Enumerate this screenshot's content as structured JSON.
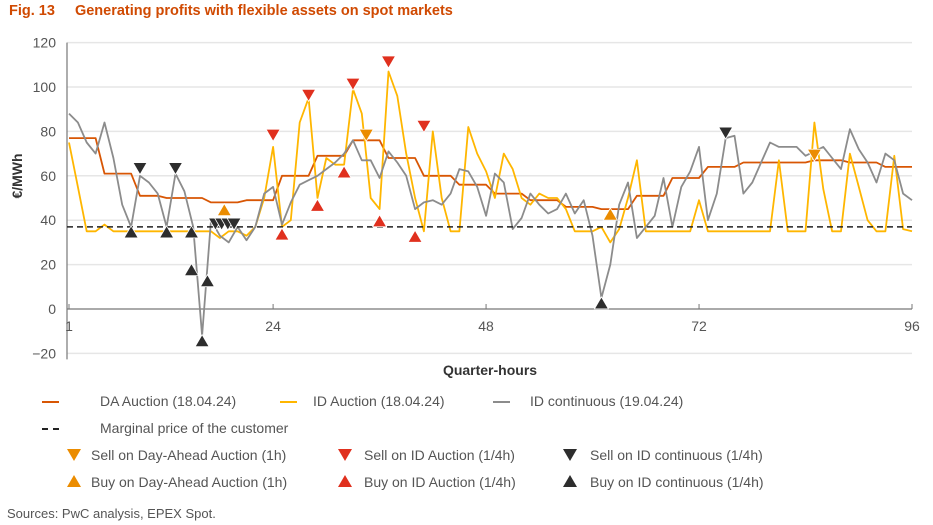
{
  "figure": {
    "number": "Fig. 13",
    "title": "Generating profits with flexible assets on spot markets"
  },
  "sources": "Sources: PwC analysis, EPEX Spot.",
  "chart_data": {
    "type": "line",
    "xlabel": "Quarter-hours",
    "ylabel": "€/MWh",
    "xlim": [
      1,
      96
    ],
    "ylim": [
      -20,
      120
    ],
    "xticks": [
      1,
      24,
      48,
      72,
      96
    ],
    "yticks": [
      -20,
      0,
      20,
      40,
      60,
      80,
      100,
      120
    ],
    "ytick_labels": [
      "−20",
      "0",
      "20",
      "40",
      "60",
      "80",
      "100",
      "120"
    ],
    "grid": "horizontal",
    "legend_placement": "bottom",
    "series": [
      {
        "name": "DA Auction (18.04.24)",
        "color": "#d85604",
        "values": [
          77,
          77,
          77,
          77,
          61,
          61,
          61,
          61,
          51,
          51,
          51,
          50,
          50,
          50,
          50,
          50,
          48,
          48,
          48,
          48,
          49,
          49,
          49,
          49,
          60,
          60,
          60,
          60,
          69,
          69,
          69,
          69,
          76,
          76,
          76,
          76,
          68,
          68,
          68,
          68,
          60,
          60,
          60,
          60,
          56,
          56,
          56,
          56,
          52,
          52,
          52,
          52,
          49,
          49,
          49,
          49,
          46,
          46,
          46,
          46,
          45,
          45,
          45,
          45,
          51,
          51,
          51,
          51,
          59,
          59,
          59,
          59,
          64,
          64,
          64,
          64,
          66,
          66,
          66,
          66,
          66,
          66,
          66,
          66,
          67,
          67,
          67,
          67,
          66,
          66,
          66,
          66,
          64,
          64,
          64,
          64
        ]
      },
      {
        "name": "ID Auction (18.04.24)",
        "color": "#ffb600",
        "values": [
          75,
          55,
          35,
          35,
          38,
          35,
          35,
          35,
          35,
          35,
          35,
          35,
          35,
          35,
          35,
          35,
          35,
          32,
          35,
          35,
          33,
          37,
          50,
          73,
          37,
          40,
          84,
          95,
          50,
          68,
          65,
          65,
          99,
          88,
          50,
          45,
          107,
          96,
          70,
          50,
          35,
          80,
          50,
          35,
          35,
          82,
          70,
          62,
          50,
          70,
          63,
          50,
          47,
          52,
          50,
          50,
          45,
          35,
          35,
          35,
          37,
          30,
          36,
          50,
          67,
          35,
          35,
          35,
          35,
          35,
          35,
          49,
          35,
          35,
          35,
          35,
          35,
          35,
          35,
          35,
          67,
          35,
          35,
          35,
          84,
          54,
          35,
          35,
          70,
          55,
          40,
          35,
          35,
          69,
          36,
          35
        ]
      },
      {
        "name": "ID continuous (19.04.24)",
        "color": "#8c8c8c",
        "values": [
          88,
          84,
          75,
          70,
          84,
          68,
          47,
          37,
          60,
          57,
          52,
          37,
          61,
          53,
          37,
          -12,
          40,
          33,
          30,
          37,
          31,
          37,
          52,
          55,
          38,
          48,
          56,
          58,
          60,
          63,
          66,
          70,
          76,
          67,
          67,
          59,
          71,
          66,
          60,
          45,
          48,
          49,
          47,
          52,
          63,
          62,
          55,
          42,
          61,
          57,
          36,
          41,
          52,
          47,
          43,
          45,
          52,
          43,
          49,
          33,
          5,
          20,
          47,
          57,
          32,
          37,
          42,
          59,
          37,
          55,
          62,
          73,
          40,
          52,
          77,
          78,
          52,
          57,
          66,
          75,
          73,
          73,
          73,
          69,
          71,
          73,
          68,
          63,
          81,
          72,
          66,
          57,
          70,
          67,
          52,
          49
        ]
      },
      {
        "name": "Marginal price of the customer",
        "color": "#222222",
        "style": "dashed",
        "values": [
          37
        ]
      }
    ],
    "markers": [
      {
        "name": "Sell on Day-Ahead Auction (1h)",
        "shape": "triangle-down",
        "color": "#eb8c00",
        "points": [
          [
            34.5,
            76
          ],
          [
            85,
            67
          ]
        ]
      },
      {
        "name": "Buy on Day-Ahead Auction (1h)",
        "shape": "triangle-up",
        "color": "#eb8c00",
        "points": [
          [
            18.5,
            47
          ],
          [
            62,
            45
          ]
        ]
      },
      {
        "name": "Sell on ID Auction (1/4h)",
        "shape": "triangle-down",
        "color": "#e0301e",
        "points": [
          [
            24,
            76
          ],
          [
            28,
            94
          ],
          [
            33,
            99
          ],
          [
            37,
            109
          ],
          [
            41,
            80
          ]
        ]
      },
      {
        "name": "Buy on ID Auction (1/4h)",
        "shape": "triangle-up",
        "color": "#e0301e",
        "points": [
          [
            25,
            36
          ],
          [
            29,
            49
          ],
          [
            32,
            64
          ],
          [
            36,
            42
          ],
          [
            40,
            35
          ]
        ]
      },
      {
        "name": "Sell on ID continuous (1/4h)",
        "shape": "triangle-down",
        "color": "#2d2d2d",
        "points": [
          [
            9,
            61
          ],
          [
            13,
            61
          ],
          [
            17.5,
            36
          ],
          [
            18.2,
            36
          ],
          [
            18.9,
            36
          ],
          [
            19.6,
            36
          ],
          [
            75,
            77
          ]
        ]
      },
      {
        "name": "Buy on ID continuous (1/4h)",
        "shape": "triangle-up",
        "color": "#2d2d2d",
        "points": [
          [
            8,
            37
          ],
          [
            12,
            37
          ],
          [
            14.8,
            37
          ],
          [
            14.8,
            20
          ],
          [
            16,
            -12
          ],
          [
            16.6,
            15
          ],
          [
            61,
            5
          ]
        ]
      }
    ]
  }
}
